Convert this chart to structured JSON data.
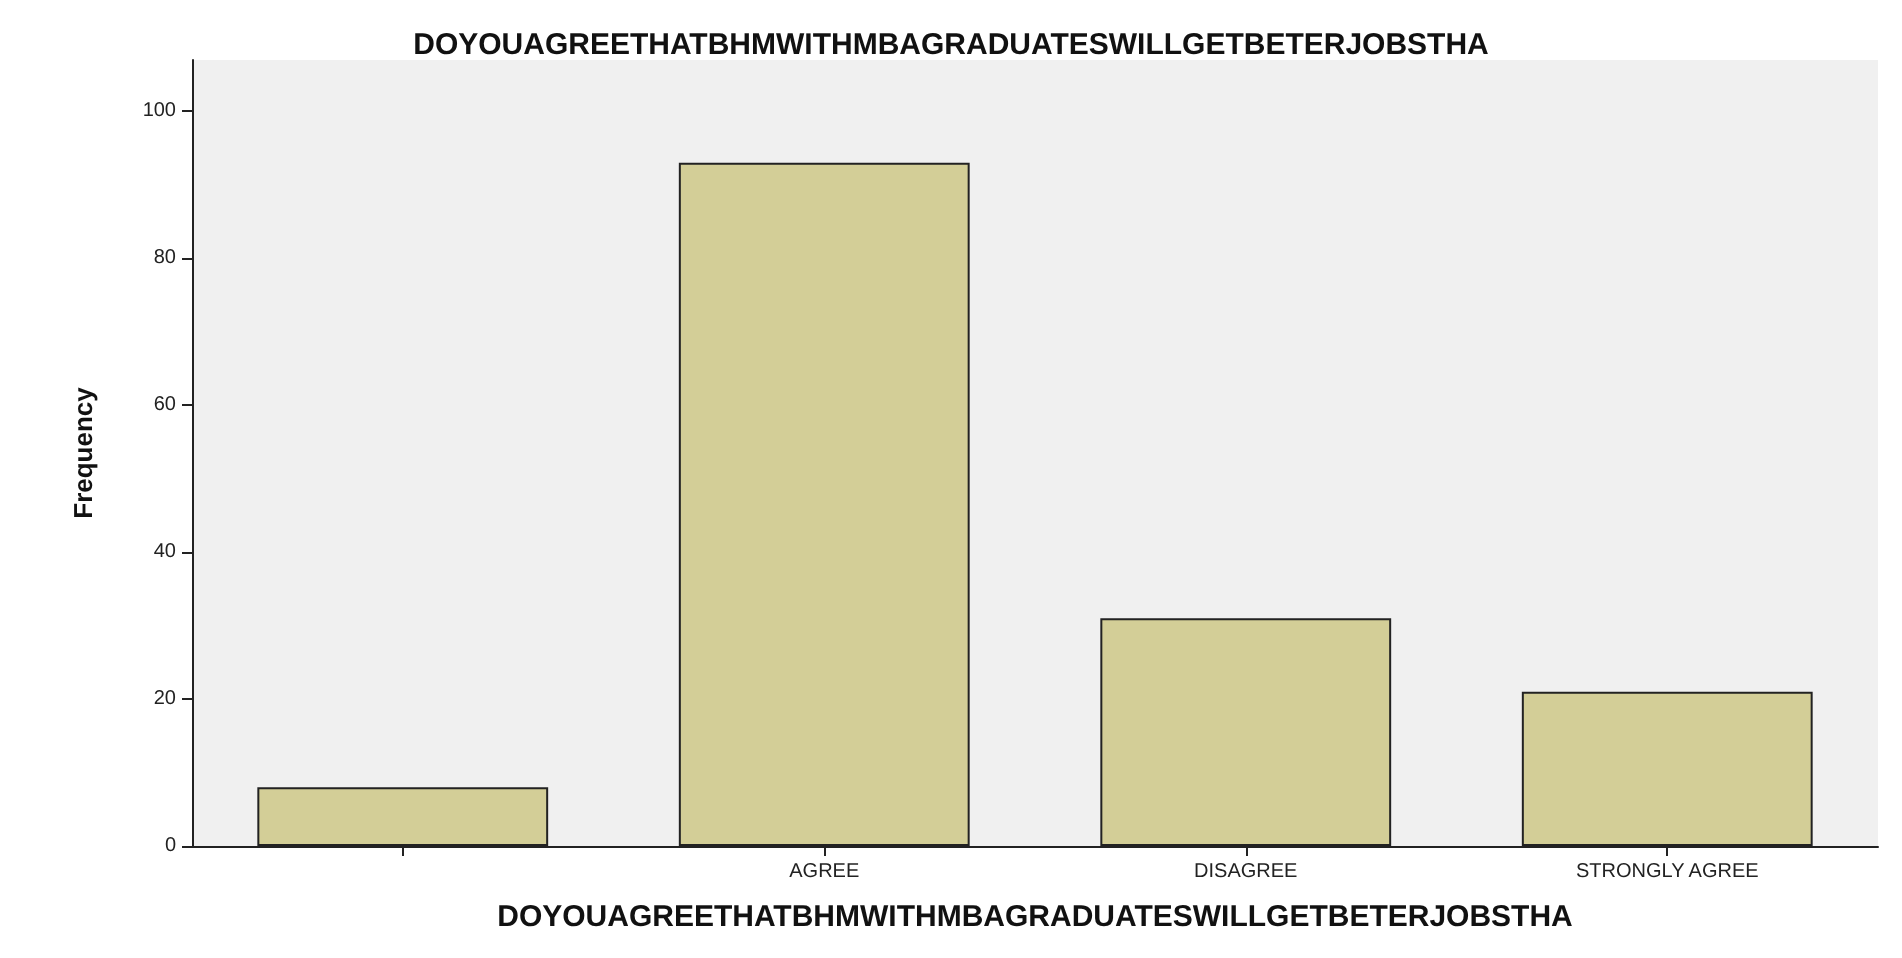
{
  "chart_data": {
    "type": "bar",
    "title": "DOYOUAGREETHATBHMWITHMBAGRADUATESWILLGETBETERJOBSTHA",
    "xlabel": "DOYOUAGREETHATBHMWITHMBAGRADUATESWILLGETBETERJOBSTHA",
    "ylabel": "Frequency",
    "categories": [
      null,
      "AGREE",
      "DISAGREE",
      "STRONGLY AGREE"
    ],
    "values": [
      8,
      93,
      31,
      21
    ],
    "color": "#d3ce97",
    "ylim": [
      0,
      107
    ],
    "yticks": [
      0,
      20,
      40,
      60,
      80,
      100
    ],
    "grid": false
  }
}
